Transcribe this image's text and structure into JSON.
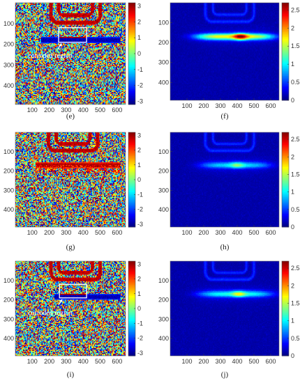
{
  "chart_data": [
    {
      "id": "e",
      "type": "heatmap",
      "kind": "phase",
      "panel_label": "(e)",
      "xticks": [
        100,
        200,
        300,
        400,
        500,
        600
      ],
      "yticks": [
        100,
        200,
        300,
        400
      ],
      "xlim": [
        0,
        650
      ],
      "ylim": [
        0,
        490
      ],
      "colorbar": {
        "ticks": [
          3,
          2,
          1,
          0,
          -1,
          -2,
          -3
        ],
        "min": -3.2,
        "max": 3.2,
        "map": "jet"
      },
      "features": {
        "band_row": 180,
        "band_x": [
          150,
          620
        ],
        "band_sign": "negative",
        "coil_center_x": 355
      },
      "annotation": {
        "text": "corroded region",
        "box": {
          "x": [
            255,
            420
          ],
          "y": [
            120,
            190
          ]
        },
        "label_x": 75,
        "label_y": 265
      }
    },
    {
      "id": "f",
      "type": "heatmap",
      "kind": "amplitude",
      "panel_label": "(f)",
      "xticks": [
        100,
        200,
        300,
        400,
        500,
        600
      ],
      "yticks": [
        100,
        200,
        300,
        400
      ],
      "xlim": [
        0,
        650
      ],
      "ylim": [
        0,
        490
      ],
      "colorbar": {
        "ticks": [
          2.5,
          2,
          1.5,
          1,
          0.5,
          0
        ],
        "min": 0,
        "max": 2.7,
        "map": "jet"
      },
      "features": {
        "hotspot_row": 170,
        "hotspot_x": [
          150,
          620
        ],
        "peak_value": 2.6,
        "peak_x": 420,
        "coil_center_x": 355
      }
    },
    {
      "id": "g",
      "type": "heatmap",
      "kind": "phase",
      "panel_label": "(g)",
      "xticks": [
        100,
        200,
        300,
        400,
        500,
        600
      ],
      "yticks": [
        100,
        200,
        300,
        400
      ],
      "xlim": [
        0,
        650
      ],
      "ylim": [
        0,
        490
      ],
      "colorbar": {
        "ticks": [
          3,
          2,
          1,
          0,
          -1,
          -2,
          -3
        ],
        "min": -3.2,
        "max": 3.2,
        "map": "jet"
      },
      "features": {
        "band_row": 170,
        "band_x": [
          120,
          620
        ],
        "band_sign": "positive",
        "coil_center_x": 340
      }
    },
    {
      "id": "h",
      "type": "heatmap",
      "kind": "amplitude",
      "panel_label": "(h)",
      "xticks": [
        100,
        200,
        300,
        400,
        500,
        600
      ],
      "yticks": [
        100,
        200,
        300,
        400
      ],
      "xlim": [
        0,
        650
      ],
      "ylim": [
        0,
        490
      ],
      "colorbar": {
        "ticks": [
          2.5,
          2,
          1.5,
          1,
          0.5,
          0
        ],
        "min": 0,
        "max": 2.7,
        "map": "jet"
      },
      "features": {
        "hotspot_row": 170,
        "hotspot_x": [
          180,
          600
        ],
        "peak_value": 1.2,
        "peak_x": 400,
        "coil_center_x": 355
      }
    },
    {
      "id": "i",
      "type": "heatmap",
      "kind": "phase",
      "panel_label": "(i)",
      "xticks": [
        100,
        200,
        300,
        400,
        500,
        600
      ],
      "yticks": [
        100,
        200,
        300,
        400
      ],
      "xlim": [
        0,
        650
      ],
      "ylim": [
        0,
        490
      ],
      "colorbar": {
        "ticks": [
          3,
          2,
          1,
          0,
          -1,
          -2,
          -3
        ],
        "min": -3.2,
        "max": 3.2,
        "map": "jet"
      },
      "features": {
        "band_row": 185,
        "band_x": [
          230,
          620
        ],
        "band_sign": "negative",
        "coil_center_x": 355
      },
      "annotation": {
        "text": "corroded region",
        "box": {
          "x": [
            260,
            420
          ],
          "y": [
            120,
            190
          ]
        },
        "label_x": 75,
        "label_y": 280
      }
    },
    {
      "id": "j",
      "type": "heatmap",
      "kind": "amplitude",
      "panel_label": "(j)",
      "xticks": [
        100,
        200,
        300,
        400,
        500,
        600
      ],
      "yticks": [
        100,
        200,
        300,
        400
      ],
      "xlim": [
        0,
        650
      ],
      "ylim": [
        0,
        490
      ],
      "colorbar": {
        "ticks": [
          2.5,
          2,
          1.5,
          1,
          0.5,
          0
        ],
        "min": 0,
        "max": 2.7,
        "map": "jet"
      },
      "features": {
        "hotspot_row": 170,
        "hotspot_x": [
          170,
          610
        ],
        "peak_value": 1.5,
        "peak_x": 410,
        "coil_center_x": 355
      }
    }
  ]
}
